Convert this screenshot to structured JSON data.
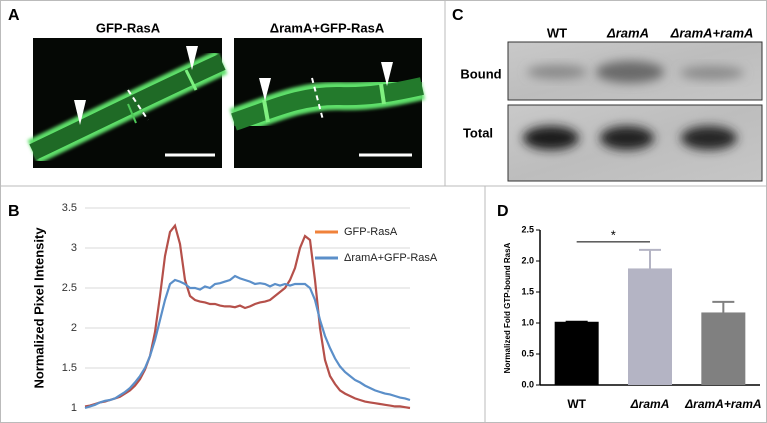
{
  "panel_labels": [
    "A",
    "B",
    "C",
    "D"
  ],
  "panel_a": {
    "images": [
      {
        "title": "GFP-RasA"
      },
      {
        "title": "ΔramA+GFP-RasA"
      }
    ]
  },
  "panel_c": {
    "lanes": [
      "WT",
      "ΔramA",
      "ΔramA+ramA"
    ],
    "rows": [
      "Bound",
      "Total"
    ]
  },
  "chart_data": [
    {
      "type": "line",
      "y_label": "Normalized Pixel Intensity",
      "ylim": [
        1,
        3.5
      ],
      "yticks": [
        1,
        1.5,
        2,
        2.5,
        3,
        3.5
      ],
      "grid": true,
      "legend": "upper right",
      "series": [
        {
          "name": "GFP-RasA",
          "color": "#b5504a",
          "legend_color": "#f0823a",
          "values": [
            1.02,
            1.03,
            1.05,
            1.07,
            1.08,
            1.1,
            1.12,
            1.14,
            1.18,
            1.22,
            1.28,
            1.36,
            1.48,
            1.65,
            1.95,
            2.4,
            2.9,
            3.2,
            3.28,
            3.05,
            2.6,
            2.4,
            2.35,
            2.33,
            2.32,
            2.3,
            2.3,
            2.28,
            2.27,
            2.27,
            2.26,
            2.28,
            2.25,
            2.27,
            2.3,
            2.32,
            2.33,
            2.35,
            2.4,
            2.45,
            2.5,
            2.6,
            2.75,
            3.0,
            3.15,
            3.1,
            2.6,
            2.0,
            1.6,
            1.4,
            1.3,
            1.22,
            1.18,
            1.15,
            1.12,
            1.1,
            1.08,
            1.07,
            1.06,
            1.05,
            1.04,
            1.03,
            1.02,
            1.02,
            1.01,
            1.0
          ]
        },
        {
          "name": "ΔramA+GFP-RasA",
          "color": "#5b8fc9",
          "legend_color": "#5b8fc9",
          "values": [
            1.0,
            1.02,
            1.04,
            1.07,
            1.09,
            1.1,
            1.12,
            1.16,
            1.2,
            1.25,
            1.32,
            1.4,
            1.5,
            1.65,
            1.85,
            2.1,
            2.35,
            2.55,
            2.6,
            2.58,
            2.55,
            2.5,
            2.5,
            2.48,
            2.52,
            2.5,
            2.55,
            2.56,
            2.58,
            2.6,
            2.65,
            2.62,
            2.6,
            2.58,
            2.55,
            2.56,
            2.55,
            2.52,
            2.55,
            2.53,
            2.55,
            2.53,
            2.55,
            2.55,
            2.55,
            2.5,
            2.35,
            2.1,
            1.9,
            1.75,
            1.62,
            1.52,
            1.45,
            1.4,
            1.35,
            1.32,
            1.28,
            1.25,
            1.22,
            1.2,
            1.18,
            1.17,
            1.15,
            1.13,
            1.12,
            1.1
          ]
        }
      ]
    },
    {
      "type": "bar",
      "y_label": "Normalized Fold GTP-bound  RasA",
      "categories": [
        "WT",
        "ΔramA",
        "ΔramA+ramA"
      ],
      "values": [
        1.02,
        1.88,
        1.17
      ],
      "errors": [
        0,
        0.3,
        0.17
      ],
      "colors": [
        "#000000",
        "#b4b4c4",
        "#808080"
      ],
      "ylim": [
        0,
        2.5
      ],
      "yticks": [
        {
          "value": 0,
          "label": "0.0"
        },
        {
          "value": 0.5,
          "label": "0.5"
        },
        {
          "value": 1,
          "label": "1.0"
        },
        {
          "value": 1.5,
          "label": "1.5"
        },
        {
          "value": 2,
          "label": "2.0"
        },
        {
          "value": 2.5,
          "label": "2.5"
        }
      ],
      "significance": {
        "label": "*",
        "pair": [
          0,
          1
        ]
      }
    }
  ]
}
